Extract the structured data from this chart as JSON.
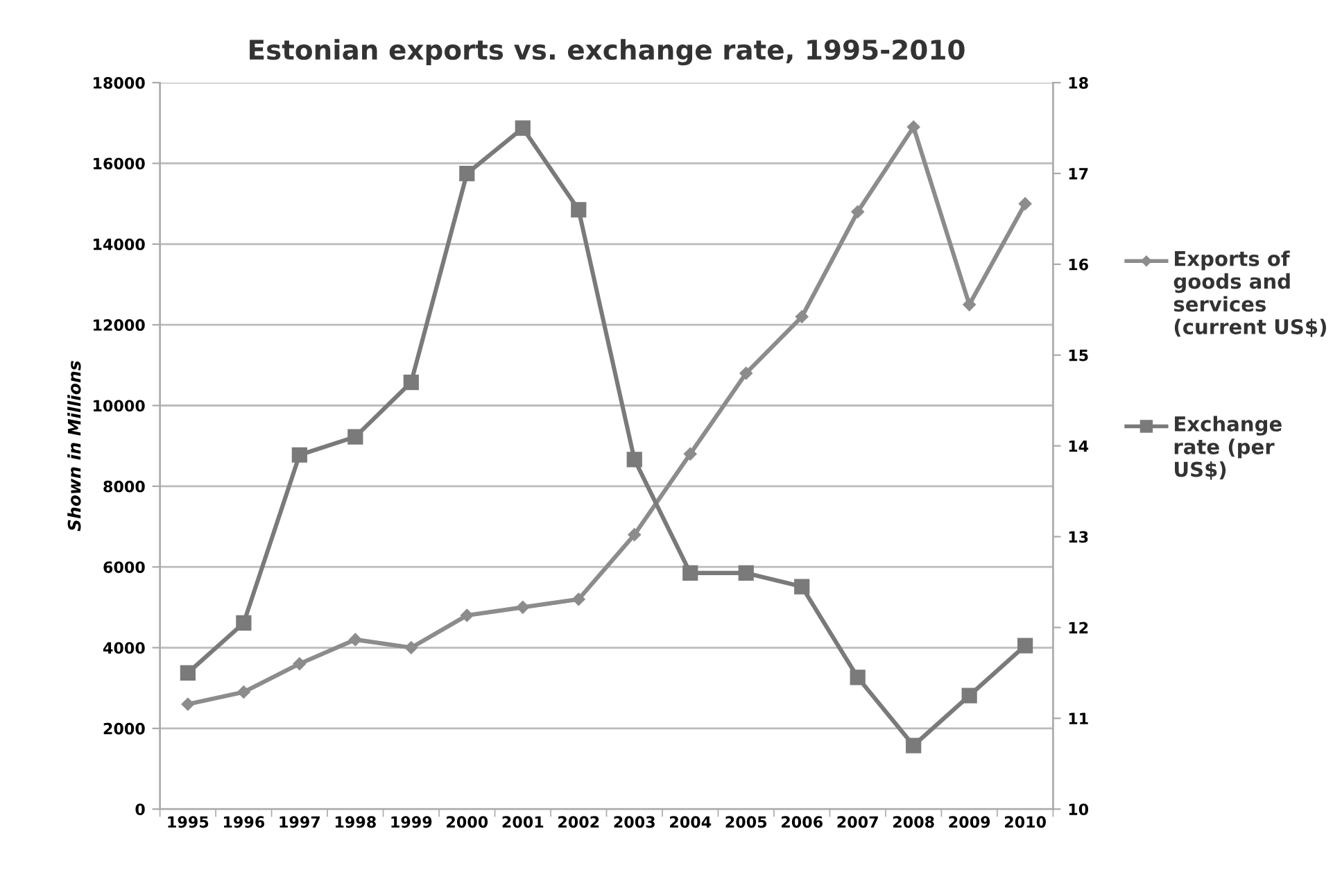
{
  "chart_data": {
    "type": "line",
    "title": "Estonian exports vs. exchange rate, 1995-2010",
    "ylabel": "Shown in Millions",
    "categories": [
      "1995",
      "1996",
      "1997",
      "1998",
      "1999",
      "2000",
      "2001",
      "2002",
      "2003",
      "2004",
      "2005",
      "2006",
      "2007",
      "2008",
      "2009",
      "2010"
    ],
    "series": [
      {
        "name": "Exports of goods and services (current US$)",
        "color": "#8c8c8c",
        "marker": "diamond",
        "values": [
          2600,
          2900,
          3600,
          4200,
          4000,
          4800,
          5000,
          5200,
          6800,
          8800,
          10800,
          12200,
          14800,
          16900,
          12500,
          15000
        ]
      },
      {
        "name": "Exchange rate (per US$)",
        "color": "#7a7a7a",
        "marker": "square",
        "axis": "y2",
        "values": [
          11.5,
          12.05,
          13.9,
          14.1,
          14.7,
          17.0,
          17.5,
          16.6,
          13.85,
          12.6,
          12.6,
          12.45,
          11.45,
          10.7,
          11.25,
          11.8
        ]
      }
    ],
    "ylim": [
      0,
      18000
    ],
    "yticks": [
      0,
      2000,
      4000,
      6000,
      8000,
      10000,
      12000,
      14000,
      16000,
      18000
    ],
    "y2lim": [
      10,
      18
    ],
    "y2ticks": [
      10,
      11,
      12,
      13,
      14,
      15,
      16,
      17,
      18
    ],
    "grid": "y",
    "legend": "right"
  }
}
